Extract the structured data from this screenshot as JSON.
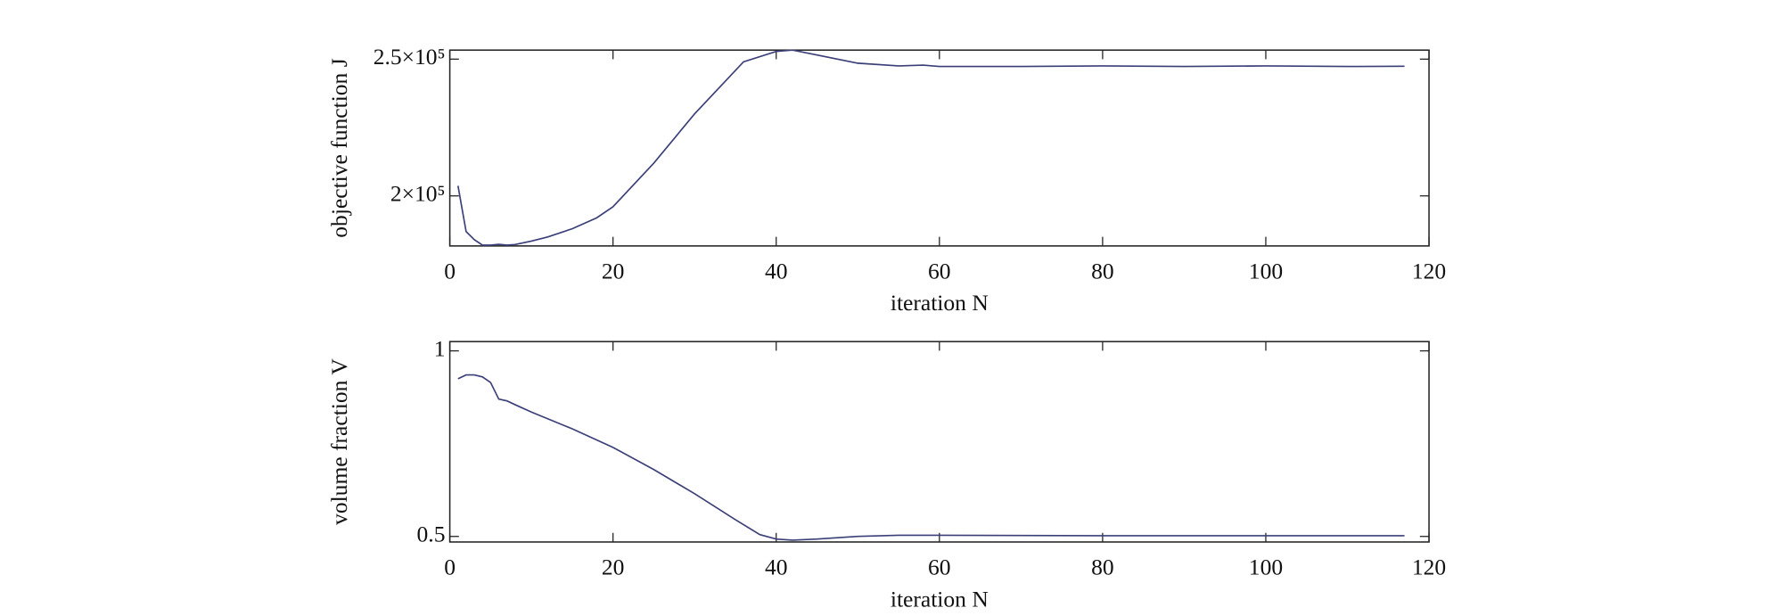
{
  "chart_data": [
    {
      "type": "line",
      "xlabel": "iteration N",
      "ylabel": "objective function J",
      "xlim": [
        0,
        120
      ],
      "xticks": [
        0,
        20,
        40,
        60,
        80,
        100,
        120
      ],
      "ylim": [
        181700,
        253300
      ],
      "yticks": [
        {
          "value": 200000,
          "label": "2×10⁵"
        },
        {
          "value": 250000,
          "label": "2.5×10⁵"
        }
      ],
      "series": [
        {
          "color": "#3b3f78",
          "x": [
            1,
            2,
            3,
            4,
            5,
            6,
            7,
            8,
            10,
            12,
            15,
            18,
            20,
            25,
            30,
            36,
            40,
            42,
            45,
            50,
            55,
            58,
            60,
            70,
            80,
            90,
            100,
            110,
            117
          ],
          "values": [
            203700,
            187000,
            184000,
            182000,
            182000,
            182300,
            182000,
            182200,
            183500,
            185000,
            188000,
            192000,
            196000,
            212000,
            230000,
            249000,
            252800,
            253300,
            251500,
            248500,
            247500,
            247800,
            247300,
            247300,
            247500,
            247300,
            247500,
            247300,
            247400
          ]
        }
      ]
    },
    {
      "type": "line",
      "xlabel": "iteration N",
      "ylabel": "volume fraction V",
      "xlim": [
        0,
        120
      ],
      "xticks": [
        0,
        20,
        40,
        60,
        80,
        100,
        120
      ],
      "ylim": [
        0.485,
        1.025
      ],
      "yticks": [
        0.5,
        1
      ],
      "series": [
        {
          "color": "#3b3f78",
          "x": [
            1,
            2,
            3,
            4,
            5,
            6,
            7,
            8,
            10,
            15,
            20,
            25,
            30,
            35,
            38,
            40,
            42,
            45,
            50,
            55,
            60,
            80,
            100,
            117
          ],
          "values": [
            0.925,
            0.935,
            0.935,
            0.93,
            0.915,
            0.87,
            0.865,
            0.855,
            0.835,
            0.79,
            0.74,
            0.68,
            0.615,
            0.545,
            0.505,
            0.493,
            0.49,
            0.493,
            0.5,
            0.503,
            0.503,
            0.502,
            0.502,
            0.502
          ]
        }
      ]
    }
  ]
}
